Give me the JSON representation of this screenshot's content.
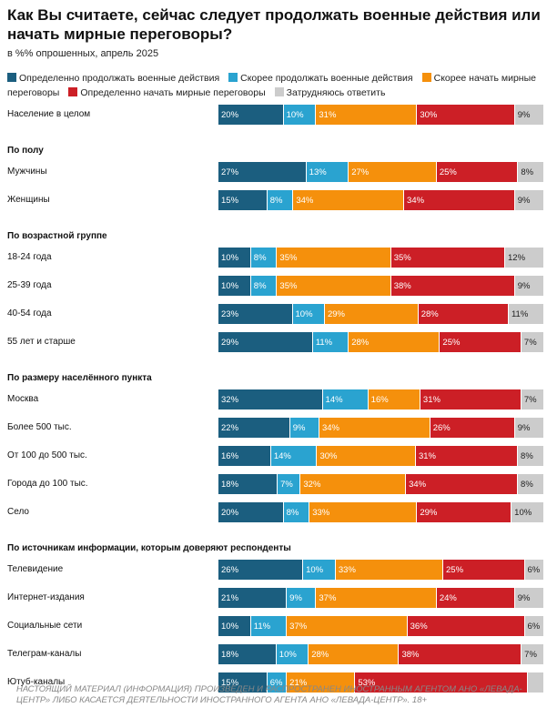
{
  "title": "Как Вы считаете, сейчас следует продолжать военные действия или начать мирные переговоры?",
  "subtitle": "в %% опрошенных, апрель 2025",
  "footer": "НАСТОЯЩИЙ МАТЕРИАЛ (ИНФОРМАЦИЯ) ПРОИЗВЕДЕН И РАСПРОСТРАНЕН ИНОСТРАННЫМ АГЕНТОМ АНО «ЛЕВАДА-ЦЕНТР» ЛИБО КАСАЕТСЯ ДЕЯТЕЛЬНОСТИ ИНОСТРАННОГО АГЕНТА АНО «ЛЕВАДА-ЦЕНТР». 18+",
  "chart_data": {
    "type": "bar",
    "orientation": "horizontal",
    "stacked": true,
    "percent_suffix": "%",
    "series": [
      {
        "name": "Определенно продолжать военные действия",
        "color": "#1b5e7f"
      },
      {
        "name": "Скорее продолжать военные действия",
        "color": "#2aa3d0"
      },
      {
        "name": "Скорее начать мирные переговоры",
        "color": "#f5900c"
      },
      {
        "name": "Определенно начать мирные переговоры",
        "color": "#cc1f26"
      },
      {
        "name": "Затрудняюсь ответить",
        "color": "#cccccc"
      }
    ],
    "groups": [
      {
        "title": "",
        "rows": [
          {
            "label": "Население в целом",
            "values": [
              20,
              10,
              31,
              30,
              9
            ]
          }
        ]
      },
      {
        "title": "По полу",
        "rows": [
          {
            "label": "Мужчины",
            "values": [
              27,
              13,
              27,
              25,
              8
            ]
          },
          {
            "label": "Женщины",
            "values": [
              15,
              8,
              34,
              34,
              9
            ]
          }
        ]
      },
      {
        "title": "По возрастной группе",
        "rows": [
          {
            "label": "18-24 года",
            "values": [
              10,
              8,
              35,
              35,
              12
            ]
          },
          {
            "label": "25-39 года",
            "values": [
              10,
              8,
              35,
              38,
              9
            ]
          },
          {
            "label": "40-54 года",
            "values": [
              23,
              10,
              29,
              28,
              11
            ]
          },
          {
            "label": "55 лет и старше",
            "values": [
              29,
              11,
              28,
              25,
              7
            ]
          }
        ]
      },
      {
        "title": "По размеру населённого пункта",
        "rows": [
          {
            "label": "Москва",
            "values": [
              32,
              14,
              16,
              31,
              7
            ]
          },
          {
            "label": "Более 500 тыс.",
            "values": [
              22,
              9,
              34,
              26,
              9
            ]
          },
          {
            "label": "От 100 до 500 тыс.",
            "values": [
              16,
              14,
              30,
              31,
              8
            ]
          },
          {
            "label": "Города до 100 тыс.",
            "values": [
              18,
              7,
              32,
              34,
              8
            ]
          },
          {
            "label": "Село",
            "values": [
              20,
              8,
              33,
              29,
              10
            ]
          }
        ]
      },
      {
        "title": "По источникам информации, которым доверяют респонденты",
        "rows": [
          {
            "label": "Телевидение",
            "values": [
              26,
              10,
              33,
              25,
              6
            ]
          },
          {
            "label": "Интернет-издания",
            "values": [
              21,
              9,
              37,
              24,
              9
            ]
          },
          {
            "label": "Социальные сети",
            "values": [
              10,
              11,
              37,
              36,
              6
            ]
          },
          {
            "label": "Телеграм-каналы",
            "values": [
              18,
              10,
              28,
              38,
              7
            ]
          },
          {
            "label": "Ютуб-каналы",
            "values": [
              15,
              6,
              21,
              53,
              5
            ]
          }
        ]
      }
    ],
    "hidden_value_labels": [
      [
        4,
        4,
        4
      ]
    ]
  }
}
